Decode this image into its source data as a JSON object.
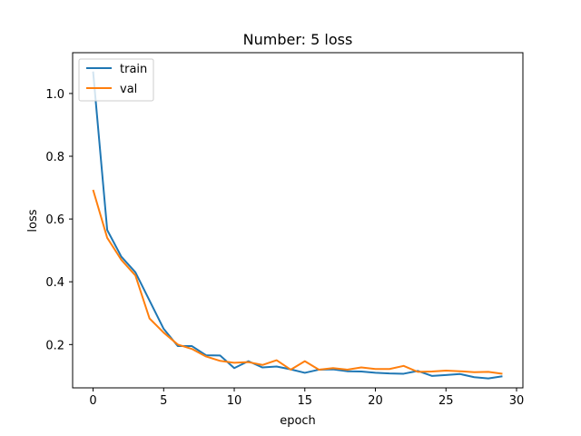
{
  "chart_data": {
    "type": "line",
    "title": "Number: 5 loss",
    "xlabel": "epoch",
    "ylabel": "loss",
    "xlim": [
      -1.45,
      30.45
    ],
    "ylim": [
      0.062,
      1.13
    ],
    "xticks": [
      0,
      5,
      10,
      15,
      20,
      25,
      30
    ],
    "yticks": [
      0.2,
      0.4,
      0.6,
      0.8,
      1.0
    ],
    "xtick_labels": [
      "0",
      "5",
      "10",
      "15",
      "20",
      "25",
      "30"
    ],
    "ytick_labels": [
      "0.2",
      "0.4",
      "0.6",
      "0.8",
      "1.0"
    ],
    "grid": false,
    "legend_position": "upper left",
    "x": [
      0,
      1,
      2,
      3,
      4,
      5,
      6,
      7,
      8,
      9,
      10,
      11,
      12,
      13,
      14,
      15,
      16,
      17,
      18,
      19,
      20,
      21,
      22,
      23,
      24,
      25,
      26,
      27,
      28,
      29
    ],
    "series": [
      {
        "name": "train",
        "color": "#1f77b4",
        "values": [
          1.07,
          0.565,
          0.48,
          0.43,
          0.34,
          0.25,
          0.195,
          0.195,
          0.166,
          0.165,
          0.125,
          0.147,
          0.127,
          0.13,
          0.121,
          0.11,
          0.12,
          0.121,
          0.115,
          0.114,
          0.11,
          0.108,
          0.107,
          0.116,
          0.1,
          0.103,
          0.106,
          0.096,
          0.092,
          0.099
        ]
      },
      {
        "name": "val",
        "color": "#ff7f0e",
        "values": [
          0.693,
          0.54,
          0.47,
          0.42,
          0.283,
          0.238,
          0.2,
          0.186,
          0.162,
          0.148,
          0.142,
          0.144,
          0.135,
          0.15,
          0.12,
          0.147,
          0.12,
          0.125,
          0.12,
          0.127,
          0.122,
          0.122,
          0.132,
          0.113,
          0.114,
          0.117,
          0.115,
          0.112,
          0.113,
          0.107
        ]
      }
    ]
  }
}
